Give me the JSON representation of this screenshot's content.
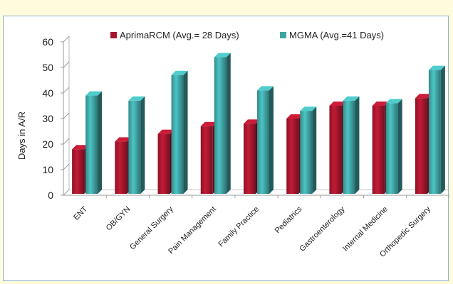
{
  "chart_data": {
    "type": "bar",
    "title": "",
    "xlabel": "",
    "ylabel": "Days in A/R",
    "ylim": [
      0,
      60
    ],
    "yticks": [
      0,
      10,
      20,
      30,
      40,
      50,
      60
    ],
    "grid": false,
    "legend_position": "top",
    "categories": [
      "ENT",
      "OB/GYN",
      "General Surgery",
      "Pain Management",
      "Family Practice",
      "Pediatrics",
      "Gastroenterology",
      "Internal Medicine",
      "Orthopedic Surgery"
    ],
    "series": [
      {
        "name": "AprimaRCM (Avg.= 28 Days)",
        "color": "#a3162d",
        "values": [
          18,
          21,
          24,
          27,
          28,
          30,
          35,
          35,
          38
        ]
      },
      {
        "name": "MGMA (Avg.=41 Days)",
        "color": "#3fa3a3",
        "values": [
          39,
          37,
          47,
          54,
          41,
          33,
          37,
          36,
          49
        ]
      }
    ]
  }
}
